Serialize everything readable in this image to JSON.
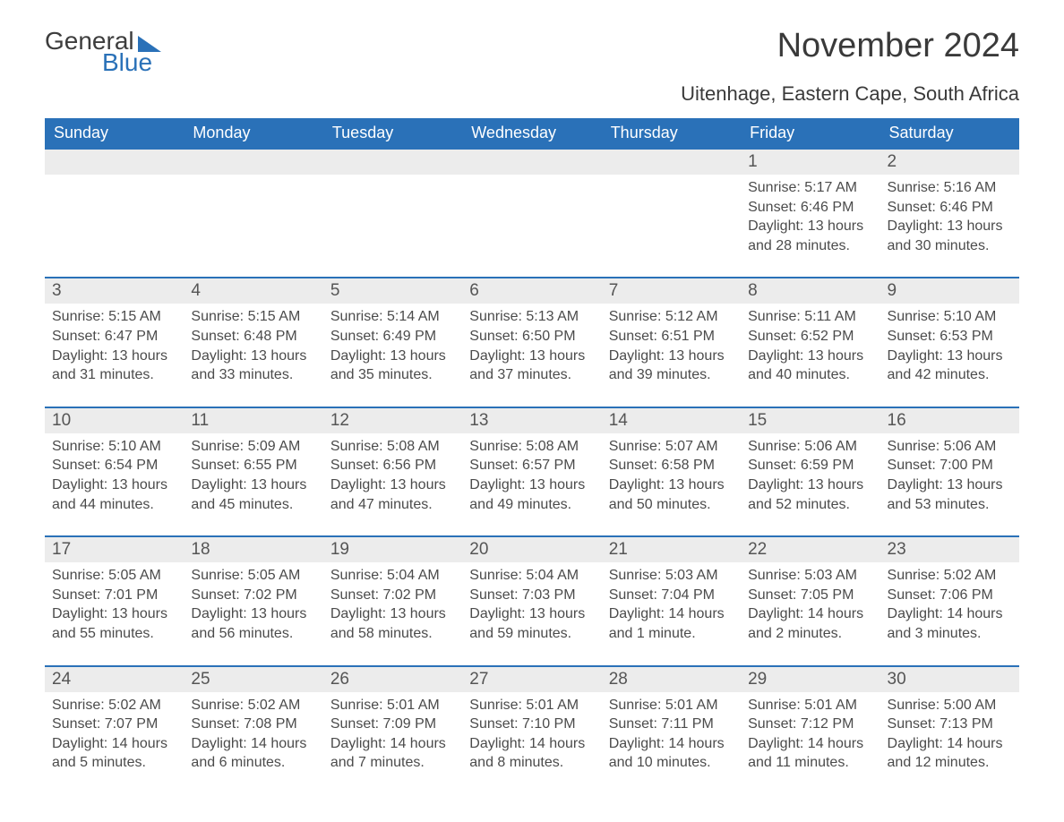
{
  "logo": {
    "text1": "General",
    "text2": "Blue",
    "brand_color": "#2a71b8"
  },
  "title": "November 2024",
  "subtitle": "Uitenhage, Eastern Cape, South Africa",
  "colors": {
    "header_bg": "#2a71b8",
    "header_text": "#ffffff",
    "numrow_bg": "#ececec",
    "numrow_border": "#2a71b8",
    "body_text": "#4b4b4b",
    "title_text": "#3a3a3a",
    "page_bg": "#ffffff"
  },
  "fonts": {
    "title_size": 38,
    "subtitle_size": 22,
    "dayhead_size": 18,
    "daynum_size": 19,
    "body_size": 16
  },
  "day_names": [
    "Sunday",
    "Monday",
    "Tuesday",
    "Wednesday",
    "Thursday",
    "Friday",
    "Saturday"
  ],
  "weeks": [
    [
      {
        "num": "",
        "sunrise": "",
        "sunset": "",
        "daylight": ""
      },
      {
        "num": "",
        "sunrise": "",
        "sunset": "",
        "daylight": ""
      },
      {
        "num": "",
        "sunrise": "",
        "sunset": "",
        "daylight": ""
      },
      {
        "num": "",
        "sunrise": "",
        "sunset": "",
        "daylight": ""
      },
      {
        "num": "",
        "sunrise": "",
        "sunset": "",
        "daylight": ""
      },
      {
        "num": "1",
        "sunrise": "Sunrise: 5:17 AM",
        "sunset": "Sunset: 6:46 PM",
        "daylight": "Daylight: 13 hours and 28 minutes."
      },
      {
        "num": "2",
        "sunrise": "Sunrise: 5:16 AM",
        "sunset": "Sunset: 6:46 PM",
        "daylight": "Daylight: 13 hours and 30 minutes."
      }
    ],
    [
      {
        "num": "3",
        "sunrise": "Sunrise: 5:15 AM",
        "sunset": "Sunset: 6:47 PM",
        "daylight": "Daylight: 13 hours and 31 minutes."
      },
      {
        "num": "4",
        "sunrise": "Sunrise: 5:15 AM",
        "sunset": "Sunset: 6:48 PM",
        "daylight": "Daylight: 13 hours and 33 minutes."
      },
      {
        "num": "5",
        "sunrise": "Sunrise: 5:14 AM",
        "sunset": "Sunset: 6:49 PM",
        "daylight": "Daylight: 13 hours and 35 minutes."
      },
      {
        "num": "6",
        "sunrise": "Sunrise: 5:13 AM",
        "sunset": "Sunset: 6:50 PM",
        "daylight": "Daylight: 13 hours and 37 minutes."
      },
      {
        "num": "7",
        "sunrise": "Sunrise: 5:12 AM",
        "sunset": "Sunset: 6:51 PM",
        "daylight": "Daylight: 13 hours and 39 minutes."
      },
      {
        "num": "8",
        "sunrise": "Sunrise: 5:11 AM",
        "sunset": "Sunset: 6:52 PM",
        "daylight": "Daylight: 13 hours and 40 minutes."
      },
      {
        "num": "9",
        "sunrise": "Sunrise: 5:10 AM",
        "sunset": "Sunset: 6:53 PM",
        "daylight": "Daylight: 13 hours and 42 minutes."
      }
    ],
    [
      {
        "num": "10",
        "sunrise": "Sunrise: 5:10 AM",
        "sunset": "Sunset: 6:54 PM",
        "daylight": "Daylight: 13 hours and 44 minutes."
      },
      {
        "num": "11",
        "sunrise": "Sunrise: 5:09 AM",
        "sunset": "Sunset: 6:55 PM",
        "daylight": "Daylight: 13 hours and 45 minutes."
      },
      {
        "num": "12",
        "sunrise": "Sunrise: 5:08 AM",
        "sunset": "Sunset: 6:56 PM",
        "daylight": "Daylight: 13 hours and 47 minutes."
      },
      {
        "num": "13",
        "sunrise": "Sunrise: 5:08 AM",
        "sunset": "Sunset: 6:57 PM",
        "daylight": "Daylight: 13 hours and 49 minutes."
      },
      {
        "num": "14",
        "sunrise": "Sunrise: 5:07 AM",
        "sunset": "Sunset: 6:58 PM",
        "daylight": "Daylight: 13 hours and 50 minutes."
      },
      {
        "num": "15",
        "sunrise": "Sunrise: 5:06 AM",
        "sunset": "Sunset: 6:59 PM",
        "daylight": "Daylight: 13 hours and 52 minutes."
      },
      {
        "num": "16",
        "sunrise": "Sunrise: 5:06 AM",
        "sunset": "Sunset: 7:00 PM",
        "daylight": "Daylight: 13 hours and 53 minutes."
      }
    ],
    [
      {
        "num": "17",
        "sunrise": "Sunrise: 5:05 AM",
        "sunset": "Sunset: 7:01 PM",
        "daylight": "Daylight: 13 hours and 55 minutes."
      },
      {
        "num": "18",
        "sunrise": "Sunrise: 5:05 AM",
        "sunset": "Sunset: 7:02 PM",
        "daylight": "Daylight: 13 hours and 56 minutes."
      },
      {
        "num": "19",
        "sunrise": "Sunrise: 5:04 AM",
        "sunset": "Sunset: 7:02 PM",
        "daylight": "Daylight: 13 hours and 58 minutes."
      },
      {
        "num": "20",
        "sunrise": "Sunrise: 5:04 AM",
        "sunset": "Sunset: 7:03 PM",
        "daylight": "Daylight: 13 hours and 59 minutes."
      },
      {
        "num": "21",
        "sunrise": "Sunrise: 5:03 AM",
        "sunset": "Sunset: 7:04 PM",
        "daylight": "Daylight: 14 hours and 1 minute."
      },
      {
        "num": "22",
        "sunrise": "Sunrise: 5:03 AM",
        "sunset": "Sunset: 7:05 PM",
        "daylight": "Daylight: 14 hours and 2 minutes."
      },
      {
        "num": "23",
        "sunrise": "Sunrise: 5:02 AM",
        "sunset": "Sunset: 7:06 PM",
        "daylight": "Daylight: 14 hours and 3 minutes."
      }
    ],
    [
      {
        "num": "24",
        "sunrise": "Sunrise: 5:02 AM",
        "sunset": "Sunset: 7:07 PM",
        "daylight": "Daylight: 14 hours and 5 minutes."
      },
      {
        "num": "25",
        "sunrise": "Sunrise: 5:02 AM",
        "sunset": "Sunset: 7:08 PM",
        "daylight": "Daylight: 14 hours and 6 minutes."
      },
      {
        "num": "26",
        "sunrise": "Sunrise: 5:01 AM",
        "sunset": "Sunset: 7:09 PM",
        "daylight": "Daylight: 14 hours and 7 minutes."
      },
      {
        "num": "27",
        "sunrise": "Sunrise: 5:01 AM",
        "sunset": "Sunset: 7:10 PM",
        "daylight": "Daylight: 14 hours and 8 minutes."
      },
      {
        "num": "28",
        "sunrise": "Sunrise: 5:01 AM",
        "sunset": "Sunset: 7:11 PM",
        "daylight": "Daylight: 14 hours and 10 minutes."
      },
      {
        "num": "29",
        "sunrise": "Sunrise: 5:01 AM",
        "sunset": "Sunset: 7:12 PM",
        "daylight": "Daylight: 14 hours and 11 minutes."
      },
      {
        "num": "30",
        "sunrise": "Sunrise: 5:00 AM",
        "sunset": "Sunset: 7:13 PM",
        "daylight": "Daylight: 14 hours and 12 minutes."
      }
    ]
  ]
}
